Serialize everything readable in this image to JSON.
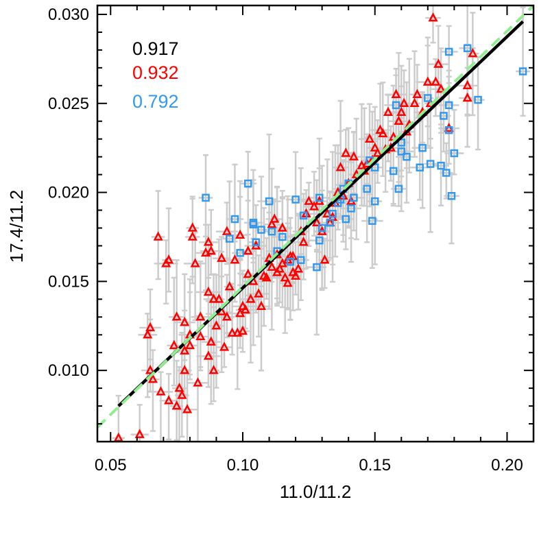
{
  "chart_data": {
    "type": "scatter",
    "xlabel": "11.0/11.2",
    "ylabel": "17.4/11.2",
    "xlim": [
      0.045,
      0.21
    ],
    "ylim": [
      0.006,
      0.0305
    ],
    "xticks": [
      0.05,
      0.1,
      0.15,
      0.2
    ],
    "xtick_labels": [
      "0.05",
      "0.10",
      "0.15",
      "0.20"
    ],
    "yticks": [
      0.01,
      0.015,
      0.02,
      0.025,
      0.03
    ],
    "ytick_labels": [
      "0.010",
      "0.015",
      "0.020",
      "0.025",
      "0.030"
    ],
    "grid": false,
    "legend_position": "top-left",
    "annotations": [
      {
        "text": "0.917",
        "color": "#000000"
      },
      {
        "text": "0.932",
        "color": "#ff0000"
      },
      {
        "text": "0.792",
        "color": "#3399ee"
      }
    ],
    "fit_lines": [
      {
        "style": "solid",
        "color": "#000000",
        "points": [
          [
            0.053,
            0.008
          ],
          [
            0.206,
            0.0296
          ]
        ]
      },
      {
        "style": "dashed",
        "color": "#90ee90",
        "points": [
          [
            0.045,
            0.0068
          ],
          [
            0.21,
            0.0305
          ]
        ]
      }
    ],
    "series": [
      {
        "marker": "triangle",
        "color": "#ff0000",
        "errorbar_color": "#cccccc",
        "points": [
          [
            0.053,
            0.0062
          ],
          [
            0.061,
            0.0064
          ],
          [
            0.064,
            0.012
          ],
          [
            0.065,
            0.0124
          ],
          [
            0.065,
            0.01
          ],
          [
            0.066,
            0.0095
          ],
          [
            0.068,
            0.0175
          ],
          [
            0.069,
            0.0088
          ],
          [
            0.071,
            0.016
          ],
          [
            0.072,
            0.0083
          ],
          [
            0.072,
            0.0162
          ],
          [
            0.074,
            0.0114
          ],
          [
            0.075,
            0.008
          ],
          [
            0.075,
            0.013
          ],
          [
            0.076,
            0.009
          ],
          [
            0.077,
            0.0086
          ],
          [
            0.078,
            0.0127
          ],
          [
            0.078,
            0.01
          ],
          [
            0.078,
            0.0111
          ],
          [
            0.079,
            0.0078
          ],
          [
            0.08,
            0.0114
          ],
          [
            0.08,
            0.012
          ],
          [
            0.081,
            0.0175
          ],
          [
            0.081,
            0.018
          ],
          [
            0.082,
            0.016
          ],
          [
            0.083,
            0.0093
          ],
          [
            0.084,
            0.013
          ],
          [
            0.084,
            0.0119
          ],
          [
            0.086,
            0.0166
          ],
          [
            0.087,
            0.0108
          ],
          [
            0.087,
            0.0172
          ],
          [
            0.087,
            0.0144
          ],
          [
            0.088,
            0.0116
          ],
          [
            0.088,
            0.0167
          ],
          [
            0.089,
            0.01
          ],
          [
            0.089,
            0.014
          ],
          [
            0.09,
            0.0125
          ],
          [
            0.091,
            0.014
          ],
          [
            0.092,
            0.0163
          ],
          [
            0.092,
            0.0133
          ],
          [
            0.093,
            0.0113
          ],
          [
            0.094,
            0.013
          ],
          [
            0.094,
            0.0178
          ],
          [
            0.095,
            0.0147
          ],
          [
            0.096,
            0.0121
          ],
          [
            0.097,
            0.0162
          ],
          [
            0.098,
            0.0121
          ],
          [
            0.099,
            0.0132
          ],
          [
            0.099,
            0.0176
          ],
          [
            0.1,
            0.0136
          ],
          [
            0.1,
            0.0122
          ],
          [
            0.101,
            0.0134
          ],
          [
            0.102,
            0.0154
          ],
          [
            0.102,
            0.0167
          ],
          [
            0.103,
            0.014
          ],
          [
            0.104,
            0.015
          ],
          [
            0.105,
            0.017
          ],
          [
            0.106,
            0.0143
          ],
          [
            0.107,
            0.0136
          ],
          [
            0.108,
            0.0153
          ],
          [
            0.109,
            0.0152
          ],
          [
            0.11,
            0.0163
          ],
          [
            0.111,
            0.0182
          ],
          [
            0.111,
            0.0158
          ],
          [
            0.112,
            0.0185
          ],
          [
            0.113,
            0.0165
          ],
          [
            0.113,
            0.0155
          ],
          [
            0.114,
            0.0157
          ],
          [
            0.115,
            0.016
          ],
          [
            0.115,
            0.018
          ],
          [
            0.116,
            0.0152
          ],
          [
            0.117,
            0.0162
          ],
          [
            0.117,
            0.0149
          ],
          [
            0.118,
            0.0164
          ],
          [
            0.119,
            0.0164
          ],
          [
            0.119,
            0.0155
          ],
          [
            0.12,
            0.0153
          ],
          [
            0.121,
            0.0157
          ],
          [
            0.122,
            0.0178
          ],
          [
            0.123,
            0.0172
          ],
          [
            0.124,
            0.0188
          ],
          [
            0.125,
            0.0195
          ],
          [
            0.127,
            0.0192
          ],
          [
            0.128,
            0.0183
          ],
          [
            0.129,
            0.0195
          ],
          [
            0.13,
            0.0178
          ],
          [
            0.131,
            0.0162
          ],
          [
            0.132,
            0.0188
          ],
          [
            0.133,
            0.0183
          ],
          [
            0.134,
            0.0186
          ],
          [
            0.135,
            0.0194
          ],
          [
            0.136,
            0.02
          ],
          [
            0.137,
            0.0214
          ],
          [
            0.138,
            0.0198
          ],
          [
            0.139,
            0.0222
          ],
          [
            0.14,
            0.0205
          ],
          [
            0.141,
            0.0195
          ],
          [
            0.142,
            0.022
          ],
          [
            0.143,
            0.021
          ],
          [
            0.145,
            0.0215
          ],
          [
            0.146,
            0.0212
          ],
          [
            0.147,
            0.0216
          ],
          [
            0.148,
            0.023
          ],
          [
            0.149,
            0.0218
          ],
          [
            0.15,
            0.0225
          ],
          [
            0.151,
            0.0222
          ],
          [
            0.152,
            0.0235
          ],
          [
            0.153,
            0.0233
          ],
          [
            0.154,
            0.0224
          ],
          [
            0.155,
            0.0245
          ],
          [
            0.156,
            0.0225
          ],
          [
            0.157,
            0.0231
          ],
          [
            0.158,
            0.0255
          ],
          [
            0.159,
            0.024
          ],
          [
            0.16,
            0.0245
          ],
          [
            0.161,
            0.025
          ],
          [
            0.162,
            0.0234
          ],
          [
            0.163,
            0.0238
          ],
          [
            0.165,
            0.025
          ],
          [
            0.166,
            0.0255
          ],
          [
            0.168,
            0.0245
          ],
          [
            0.17,
            0.0262
          ],
          [
            0.171,
            0.025
          ],
          [
            0.172,
            0.0298
          ],
          [
            0.173,
            0.0262
          ],
          [
            0.174,
            0.0272
          ],
          [
            0.175,
            0.0258
          ],
          [
            0.178,
            0.0236
          ],
          [
            0.185,
            0.026
          ],
          [
            0.185,
            0.0253
          ],
          [
            0.187,
            0.0278
          ]
        ]
      },
      {
        "marker": "square",
        "color": "#3399ee",
        "errorbar_color": "#cccccc",
        "points": [
          [
            0.086,
            0.0197
          ],
          [
            0.095,
            0.0174
          ],
          [
            0.097,
            0.0185
          ],
          [
            0.099,
            0.0166
          ],
          [
            0.102,
            0.0205
          ],
          [
            0.104,
            0.0182
          ],
          [
            0.104,
            0.0183
          ],
          [
            0.105,
            0.0172
          ],
          [
            0.107,
            0.0179
          ],
          [
            0.11,
            0.0195
          ],
          [
            0.111,
            0.0178
          ],
          [
            0.113,
            0.0167
          ],
          [
            0.115,
            0.0175
          ],
          [
            0.118,
            0.0161
          ],
          [
            0.12,
            0.0196
          ],
          [
            0.122,
            0.0162
          ],
          [
            0.123,
            0.0187
          ],
          [
            0.128,
            0.0158
          ],
          [
            0.129,
            0.0173
          ],
          [
            0.129,
            0.0197
          ],
          [
            0.13,
            0.018
          ],
          [
            0.133,
            0.0183
          ],
          [
            0.134,
            0.0188
          ],
          [
            0.136,
            0.0194
          ],
          [
            0.137,
            0.0196
          ],
          [
            0.138,
            0.0202
          ],
          [
            0.139,
            0.0185
          ],
          [
            0.14,
            0.0205
          ],
          [
            0.141,
            0.0191
          ],
          [
            0.142,
            0.0197
          ],
          [
            0.147,
            0.0202
          ],
          [
            0.148,
            0.0218
          ],
          [
            0.149,
            0.0184
          ],
          [
            0.15,
            0.0195
          ],
          [
            0.15,
            0.0214
          ],
          [
            0.157,
            0.0212
          ],
          [
            0.158,
            0.0249
          ],
          [
            0.159,
            0.0202
          ],
          [
            0.16,
            0.0223
          ],
          [
            0.16,
            0.0228
          ],
          [
            0.162,
            0.022
          ],
          [
            0.167,
            0.0214
          ],
          [
            0.168,
            0.0225
          ],
          [
            0.17,
            0.0253
          ],
          [
            0.171,
            0.0216
          ],
          [
            0.175,
            0.0215
          ],
          [
            0.176,
            0.0243
          ],
          [
            0.177,
            0.0211
          ],
          [
            0.178,
            0.0279
          ],
          [
            0.178,
            0.0249
          ],
          [
            0.178,
            0.0235
          ],
          [
            0.179,
            0.0198
          ],
          [
            0.18,
            0.0222
          ],
          [
            0.185,
            0.0281
          ],
          [
            0.189,
            0.0252
          ],
          [
            0.206,
            0.0268
          ]
        ]
      }
    ]
  }
}
